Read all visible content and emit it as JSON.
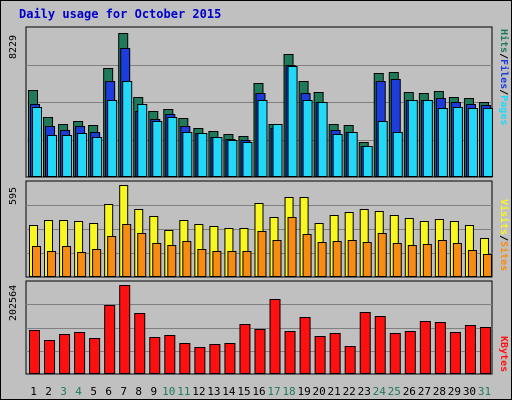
{
  "title": "Daily usage for October 2015",
  "colors": {
    "hits": "#1f7a5a",
    "files": "#1c3cdc",
    "pages": "#20d8f8",
    "visits": "#f8f820",
    "sites": "#f88c10",
    "kbytes": "#ff1010",
    "weekend_label": "#1f7a5a",
    "weekday_label": "#000000"
  },
  "labels": {
    "top_max": "8229",
    "mid_max": "595",
    "bot_max": "202564",
    "right_pages": "Pages",
    "right_files": "Files",
    "right_hits": "Hits",
    "right_sites": "Sites",
    "right_visits": "Visits",
    "right_kbytes": "KBytes",
    "sep": "/"
  },
  "chart_data": {
    "type": "bar",
    "title": "Daily usage for October 2015",
    "categories": [
      "1",
      "2",
      "3",
      "4",
      "5",
      "6",
      "7",
      "8",
      "9",
      "10",
      "11",
      "12",
      "13",
      "14",
      "15",
      "16",
      "17",
      "18",
      "19",
      "20",
      "21",
      "22",
      "23",
      "24",
      "25",
      "26",
      "27",
      "28",
      "29",
      "30",
      "31"
    ],
    "weekend_days": [
      "3",
      "4",
      "10",
      "11",
      "17",
      "18",
      "24",
      "25",
      "31"
    ],
    "panels": [
      {
        "name": "top",
        "ymax": 8229,
        "series": [
          {
            "name": "Hits",
            "values": [
              4950,
              3440,
              3030,
              3180,
              2990,
              6230,
              8229,
              4560,
              3790,
              3880,
              3400,
              2800,
              2620,
              2430,
              2370,
              5350,
              3030,
              7010,
              5480,
              4860,
              3030,
              2990,
              2000,
              5930,
              6000,
              4850,
              4810,
              4900,
              4600,
              4500,
              4300
            ]
          },
          {
            "name": "Files",
            "values": [
              4200,
              2900,
              2700,
              2900,
              2600,
              5500,
              7380,
              3800,
              3300,
              3600,
              2900,
              2500,
              2300,
              2200,
              2100,
              4800,
              2800,
              6400,
              4800,
              4300,
              2700,
              2600,
              1800,
              5500,
              5600,
              4400,
              4400,
              4500,
              4300,
              4200,
              4100
            ]
          },
          {
            "name": "Pages",
            "values": [
              4000,
              2380,
              2420,
              2520,
              2300,
              4410,
              5460,
              4150,
              3180,
              3420,
              2600,
              2500,
              2300,
              2120,
              2000,
              4410,
              3030,
              6320,
              4410,
              4310,
              2430,
              2570,
              1750,
              3180,
              2600,
              4410,
              4410,
              3960,
              4000,
              3950,
              3920
            ]
          }
        ]
      },
      {
        "name": "mid",
        "ymax": 595,
        "series": [
          {
            "name": "Visits",
            "values": [
              335,
              370,
              370,
              360,
              350,
              470,
              595,
              440,
              395,
              305,
              370,
              345,
              330,
              320,
              315,
              480,
              390,
              520,
              515,
              350,
              400,
              420,
              440,
              430,
              400,
              380,
              360,
              375,
              360,
              335,
              255
            ]
          },
          {
            "name": "Sites",
            "values": [
              200,
              165,
              200,
              160,
              180,
              265,
              345,
              285,
              220,
              210,
              230,
              180,
              170,
              165,
              170,
              300,
              240,
              390,
              280,
              225,
              235,
              240,
              225,
              285,
              220,
              210,
              215,
              240,
              220,
              175,
              150
            ]
          }
        ]
      },
      {
        "name": "bot",
        "ymax": 202564,
        "series": [
          {
            "name": "KBytes",
            "values": [
              101000,
              78000,
              90000,
              96000,
              83000,
              157000,
              202564,
              138000,
              85000,
              89000,
              70000,
              62000,
              69000,
              70000,
              114000,
              102000,
              170000,
              98000,
              130000,
              87000,
              93000,
              64000,
              141000,
              132000,
              94000,
              97000,
              121000,
              119000,
              96000,
              111000,
              107000
            ]
          }
        ]
      }
    ]
  }
}
